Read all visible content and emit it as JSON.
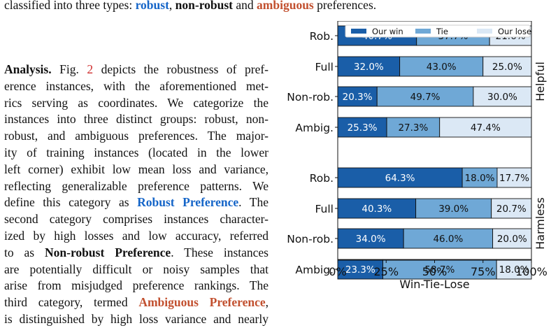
{
  "top_text": {
    "prefix": "classified into three types:",
    "robust": "robust",
    "sep1": ",",
    "nonrobust": "non-robust",
    "sep2": "and",
    "ambiguous": "ambiguous",
    "suffix": "preferences."
  },
  "paragraph": {
    "l1_heading": "Analysis.",
    "l1_a": "Fig.",
    "l1_ref": "2",
    "l1_b": "depicts the robustness of pref-",
    "l2": "erence instances, with the aforementioned met-",
    "l3": "rics serving as coordinates. We categorize the",
    "l4": "instances into three distinct groups: robust, non-",
    "l5": "robust, and ambiguous preferences. The major-",
    "l6": "ity of training instances (located in the lower",
    "l7": "left corner) exhibit low mean loss and variance,",
    "l8": "reflecting generalizable preference patterns. We",
    "l9_a": "define this category as",
    "l9_term": "Robust Preference",
    "l9_b": ". The",
    "l10": "second category comprises instances character-",
    "l11": "ized by high losses and low accuracy, referred",
    "l12_a": "to as",
    "l12_term": "Non-robust Preference",
    "l12_b": ". These instances",
    "l13": "are potentially difficult or noisy samples that",
    "l14": "arise from misjudged preference rankings. The",
    "l15_a": "third category, termed",
    "l15_term": "Ambiguous Preference",
    "l15_b": ",",
    "l16": "is distinguished by high loss variance and nearly"
  },
  "colors": {
    "our_win": "#1a5ea8",
    "tie": "#6fa8d6",
    "our_lose": "#dbe8f5",
    "robust_text": "#1565c8",
    "ambiguous_text": "#c2502f",
    "ref_text": "#d03030"
  },
  "chart_data": {
    "type": "bar",
    "orientation": "horizontal-stacked",
    "xlabel": "Win-Tie-Lose",
    "xlim": [
      0,
      100
    ],
    "xticks": [
      "0%",
      "25%",
      "50%",
      "75%",
      "100%"
    ],
    "legend": {
      "placement": "top",
      "entries": [
        "Our win",
        "Tie",
        "Our lose"
      ]
    },
    "groups": [
      {
        "name": "Helpful",
        "rows": [
          {
            "label": "Rob.",
            "values": [
              40.7,
              37.7,
              21.6
            ],
            "text": [
              "40.7%",
              "37.7%",
              "21.6%"
            ]
          },
          {
            "label": "Full",
            "values": [
              32.0,
              43.0,
              25.0
            ],
            "text": [
              "32.0%",
              "43.0%",
              "25.0%"
            ]
          },
          {
            "label": "Non-rob.",
            "values": [
              20.3,
              49.7,
              30.0
            ],
            "text": [
              "20.3%",
              "49.7%",
              "30.0%"
            ]
          },
          {
            "label": "Ambig.",
            "values": [
              25.3,
              27.3,
              47.4
            ],
            "text": [
              "25.3%",
              "27.3%",
              "47.4%"
            ]
          }
        ]
      },
      {
        "name": "Harmless",
        "rows": [
          {
            "label": "Rob.",
            "values": [
              64.3,
              18.0,
              17.7
            ],
            "text": [
              "64.3%",
              "18.0%",
              "17.7%"
            ]
          },
          {
            "label": "Full",
            "values": [
              40.3,
              39.0,
              20.7
            ],
            "text": [
              "40.3%",
              "39.0%",
              "20.7%"
            ]
          },
          {
            "label": "Non-rob.",
            "values": [
              34.0,
              46.0,
              20.0
            ],
            "text": [
              "34.0%",
              "46.0%",
              "20.0%"
            ]
          },
          {
            "label": "Ambig.",
            "values": [
              23.3,
              58.7,
              18.0
            ],
            "text": [
              "23.3%",
              "58.7%",
              "18.0%"
            ]
          }
        ]
      }
    ]
  }
}
